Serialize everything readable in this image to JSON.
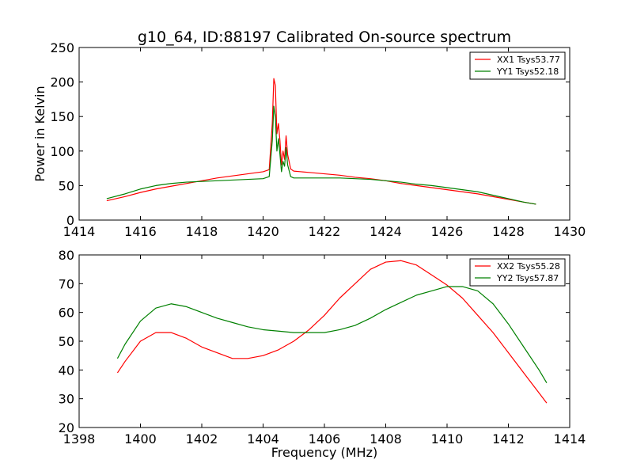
{
  "title": "g10_64, ID:88197 Calibrated On-source spectrum",
  "chart_data": [
    {
      "type": "line",
      "ylabel": "Power in Kelvin",
      "xlabel": "",
      "xlim": [
        1414,
        1430
      ],
      "ylim": [
        0,
        250
      ],
      "xticks": [
        1414,
        1416,
        1418,
        1420,
        1422,
        1424,
        1426,
        1428,
        1430
      ],
      "yticks": [
        0,
        50,
        100,
        150,
        200,
        250
      ],
      "legend_position": "top-right",
      "series": [
        {
          "name": "XX1 Tsys53.77",
          "color": "#ff0000",
          "x": [
            1414.9,
            1415.5,
            1416,
            1416.5,
            1417,
            1417.5,
            1418,
            1418.5,
            1419,
            1419.5,
            1420,
            1420.2,
            1420.3,
            1420.35,
            1420.4,
            1420.45,
            1420.5,
            1420.55,
            1420.6,
            1420.65,
            1420.7,
            1420.75,
            1420.8,
            1420.9,
            1421,
            1421.5,
            1422,
            1422.5,
            1423,
            1423.5,
            1424,
            1424.5,
            1425,
            1425.5,
            1426,
            1426.5,
            1427,
            1427.5,
            1428,
            1428.5,
            1428.9
          ],
          "y": [
            28,
            34,
            40,
            45,
            49,
            53,
            57,
            61,
            64,
            67,
            70,
            73,
            140,
            205,
            195,
            125,
            140,
            115,
            80,
            100,
            88,
            122,
            95,
            74,
            71,
            69,
            67,
            65,
            62,
            60,
            57,
            53,
            50,
            47,
            44,
            41,
            38,
            34,
            30,
            26,
            23
          ]
        },
        {
          "name": "YY1 Tsys52.18",
          "color": "#008000",
          "x": [
            1414.9,
            1415.5,
            1416,
            1416.5,
            1417,
            1417.5,
            1418,
            1418.5,
            1419,
            1419.5,
            1420,
            1420.2,
            1420.3,
            1420.35,
            1420.4,
            1420.45,
            1420.5,
            1420.55,
            1420.6,
            1420.65,
            1420.7,
            1420.75,
            1420.8,
            1420.9,
            1421,
            1421.5,
            1422,
            1422.5,
            1423,
            1423.5,
            1424,
            1424.5,
            1425,
            1425.5,
            1426,
            1426.5,
            1427,
            1427.5,
            1428,
            1428.5,
            1428.9
          ],
          "y": [
            31,
            38,
            45,
            50,
            53,
            55,
            56,
            57,
            58,
            59,
            60,
            63,
            115,
            165,
            150,
            100,
            118,
            95,
            70,
            85,
            78,
            105,
            80,
            63,
            61,
            61,
            61,
            61,
            60,
            59,
            57,
            55,
            52,
            50,
            47,
            44,
            41,
            36,
            31,
            26,
            23
          ]
        }
      ]
    },
    {
      "type": "line",
      "xlabel": "Frequency (MHz)",
      "ylabel": "",
      "xlim": [
        1398,
        1414
      ],
      "ylim": [
        20,
        80
      ],
      "xticks": [
        1398,
        1400,
        1402,
        1404,
        1406,
        1408,
        1410,
        1412,
        1414
      ],
      "yticks": [
        20,
        30,
        40,
        50,
        60,
        70,
        80
      ],
      "legend_position": "top-right",
      "series": [
        {
          "name": "XX2 Tsys55.28",
          "color": "#ff0000",
          "x": [
            1399.25,
            1399.5,
            1400,
            1400.5,
            1401,
            1401.5,
            1402,
            1402.5,
            1403,
            1403.5,
            1404,
            1404.5,
            1405,
            1405.5,
            1406,
            1406.5,
            1407,
            1407.5,
            1408,
            1408.5,
            1409,
            1409.5,
            1410,
            1410.5,
            1411,
            1411.5,
            1412,
            1412.5,
            1413,
            1413.25
          ],
          "y": [
            39,
            43,
            50,
            53,
            53,
            51,
            48,
            46,
            44,
            44,
            45,
            47,
            50,
            54,
            59,
            65,
            70,
            75,
            77.5,
            78,
            76.5,
            73,
            69.5,
            65,
            59,
            53,
            46,
            39,
            32,
            28.5
          ]
        },
        {
          "name": "YY2 Tsys57.87",
          "color": "#008000",
          "x": [
            1399.25,
            1399.5,
            1400,
            1400.5,
            1401,
            1401.5,
            1402,
            1402.5,
            1403,
            1403.5,
            1404,
            1404.5,
            1405,
            1405.5,
            1406,
            1406.5,
            1407,
            1407.5,
            1408,
            1408.5,
            1409,
            1409.5,
            1410,
            1410.5,
            1411,
            1411.5,
            1412,
            1412.5,
            1413,
            1413.25
          ],
          "y": [
            44,
            49,
            57,
            61.5,
            63,
            62,
            60,
            58,
            56.5,
            55,
            54,
            53.5,
            53,
            53,
            53,
            54,
            55.5,
            58,
            61,
            63.5,
            66,
            67.5,
            69,
            69,
            67.5,
            63,
            56,
            48,
            40,
            35.5
          ]
        }
      ]
    }
  ]
}
